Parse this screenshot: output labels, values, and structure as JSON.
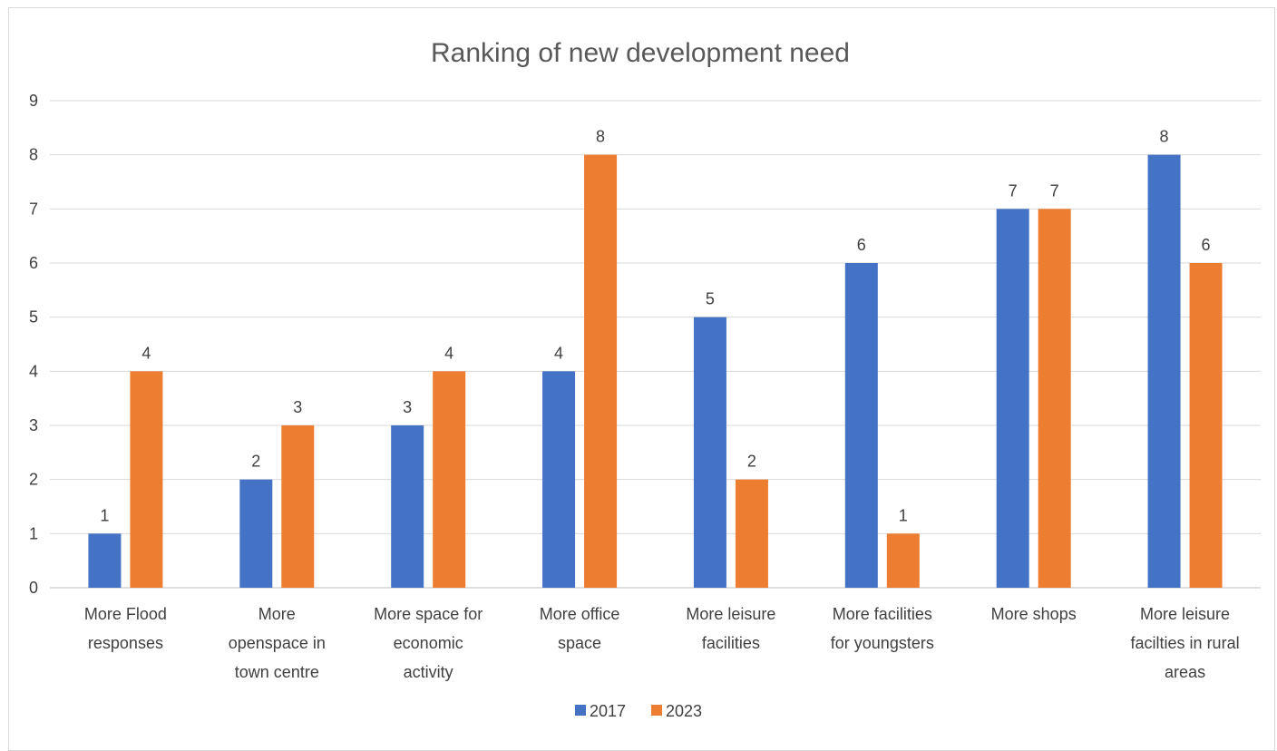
{
  "chart_data": {
    "type": "bar",
    "title": "Ranking of new development need",
    "categories": [
      [
        "More Flood",
        "responses"
      ],
      [
        "More",
        "openspace in",
        "town centre"
      ],
      [
        "More space for",
        "economic",
        "activity"
      ],
      [
        "More office",
        "space"
      ],
      [
        "More leisure",
        "facilities"
      ],
      [
        "More facilities",
        "for youngsters"
      ],
      [
        "More shops"
      ],
      [
        "More leisure",
        "facilties in rural",
        "areas"
      ]
    ],
    "series": [
      {
        "name": "2017",
        "color": "#4472c4",
        "values": [
          1,
          2,
          3,
          4,
          5,
          6,
          7,
          8
        ]
      },
      {
        "name": "2023",
        "color": "#ed7d31",
        "values": [
          4,
          3,
          4,
          8,
          2,
          1,
          7,
          6
        ]
      }
    ],
    "ylim": [
      0,
      9
    ],
    "yticks": [
      "0",
      "1",
      "2",
      "3",
      "4",
      "5",
      "6",
      "7",
      "8",
      "9"
    ],
    "grid": true,
    "legend": "bottom"
  }
}
